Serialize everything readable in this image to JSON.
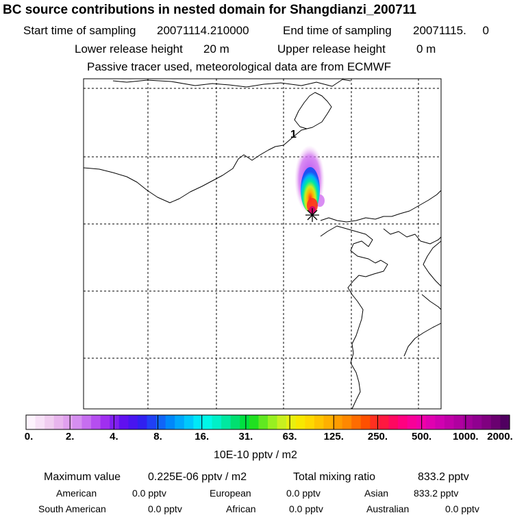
{
  "title": "BC  source contributions in nested domain for Shangdianzi_200711",
  "sampling": {
    "start_label": "Start time of sampling",
    "start_value": "20071114.210000",
    "end_label": "End time of sampling",
    "end_value": "20071115.     0"
  },
  "release": {
    "lower_label": "Lower release height",
    "lower_value": "20 m",
    "upper_label": "Upper release height",
    "upper_value": "0 m"
  },
  "tracer_note": "Passive tracer used, meteorological data are from ECMWF",
  "map": {
    "receptor_label": "1",
    "receptor_marker": "asterisk"
  },
  "colorbar": {
    "tick_labels": [
      "0.",
      "2.",
      "4.",
      "8.",
      "16.",
      "31.",
      "63.",
      "125.",
      "250.",
      "500.",
      "1000.",
      "2000."
    ],
    "unit": "10E-10 pptv / m2",
    "colors": [
      "#fdf3fd",
      "#f7e1f7",
      "#f0cdf0",
      "#e8b5ed",
      "#e0a0ee",
      "#d58ef0",
      "#c66ef0",
      "#b54ef0",
      "#a02ff0",
      "#8020f0",
      "#6010f0",
      "#4815f0",
      "#3020f0",
      "#2040f5",
      "#1065f8",
      "#0088fa",
      "#00a8fc",
      "#00c8fc",
      "#00e8f8",
      "#00f8e8",
      "#00f0c8",
      "#00e8a0",
      "#00e070",
      "#00e040",
      "#20e020",
      "#60e820",
      "#98f020",
      "#c8f020",
      "#e8f010",
      "#f8e800",
      "#ffd800",
      "#ffc400",
      "#ffb000",
      "#ff9c00",
      "#ff8800",
      "#ff6c00",
      "#ff5000",
      "#ff3020",
      "#ff1840",
      "#ff0860",
      "#ff0080",
      "#f80098",
      "#f000a8",
      "#e000b0",
      "#d000b0",
      "#c000a8",
      "#b000a0",
      "#a00098",
      "#900090",
      "#800080",
      "#6a0070",
      "#500060"
    ]
  },
  "summary": {
    "max_label": "Maximum value",
    "max_value": "0.225E-06 pptv / m2",
    "total_label": "Total mixing ratio",
    "total_value": "833.2 pptv",
    "regions": [
      {
        "name": "American",
        "value": "0.0 pptv"
      },
      {
        "name": "European",
        "value": "0.0 pptv"
      },
      {
        "name": "Asian",
        "value": "833.2 pptv"
      },
      {
        "name": "South American",
        "value": "0.0 pptv"
      },
      {
        "name": "African",
        "value": "0.0 pptv"
      },
      {
        "name": "Australian",
        "value": "0.0 pptv"
      }
    ]
  }
}
